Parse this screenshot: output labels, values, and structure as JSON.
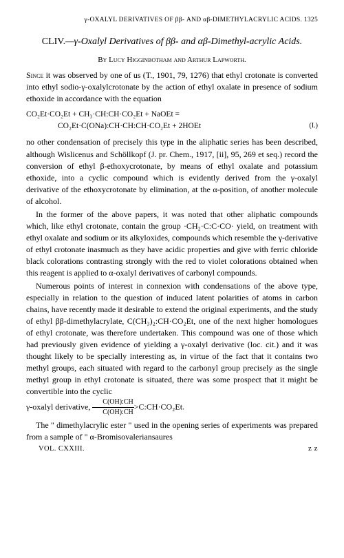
{
  "runningHead": "γ-OXALYL DERIVATIVES OF ββ- AND αβ-DIMETHYLACRYLIC ACIDS. 1325",
  "title": {
    "num": "CLIV.",
    "text": "—γ-Oxalyl Derivatives of ββ- and αβ-Dimethyl-acrylic Acids."
  },
  "byline": "By Lucy Higginbotham and Arthur Lapworth.",
  "para1a": "Since",
  "para1b": " it was observed by one of us (T., 1901, 79, 1276) that ethyl crotonate is converted into ethyl sodio-γ-oxalylcrotonate by the action of ethyl oxalate in presence of sodium ethoxide in accordance with the equation",
  "eqLine1": "CO₂Et·CO₂Et + CH₃·CH:CH·CO₂Et + NaOEt =",
  "eqLine2": "CO₂Et·C(ONa):CH·CH:CH·CO₂Et + 2HOEt",
  "eqNum": "(I.)",
  "para2": "no other condensation of precisely this type in the aliphatic series has been described, although Wislicenus and Schöllkopf (J. pr. Chem., 1917, [ii], 95, 269 et seq.) record the conversion of ethyl β-ethoxycrotonate, by means of ethyl oxalate and potassium ethoxide, into a cyclic compound which is evidently derived from the γ-oxalyl derivative of the ethoxycrotonate by elimination, at the α-position, of another molecule of alcohol.",
  "para3": "In the former of the above papers, it was noted that other aliphatic compounds which, like ethyl crotonate, contain the group ·CH₂·C:C·CO· yield, on treatment with ethyl oxalate and sodium or its alkyloxides, compounds which resemble the γ-derivative of ethyl crotonate inasmuch as they have acidic properties and give with ferric chloride black colorations contrasting strongly with the red to violet colorations obtained when this reagent is applied to α-oxalyl derivatives of carbonyl compounds.",
  "para4a": "Numerous points of interest in connexion with condensations of the above type, especially in relation to the question of induced latent polarities of atoms in carbon chains, have recently made it desirable to extend the original experiments, and the study of ethyl ββ-dimethylacrylate, C(CH₃)₂:CH·CO₂Et, one of the next higher homologues of ethyl crotonate, was therefore undertaken. This compound was one of those which had previously given evidence of yielding a γ-oxalyl derivative (loc. cit.) and it was thought likely to be specially interesting as, in virtue of the fact that it contains two methyl groups, each situated with regard to the carbonyl group precisely as the single methyl group in ethyl crotonate is situated, there was some prospect that it might be convertible into the cyclic",
  "para4b": "γ-oxalyl derivative, ",
  "fracTop": "C(OH):CH",
  "fracBot": "C(OH):CH",
  "para4c": ">C:CH·CO₂Et.",
  "para5": "The \" dimethylacrylic ester \" used in the opening series of experiments was prepared from a sample of \" α-Bromisovaleriansaures",
  "footerLeft": "VOL. CXXIII.",
  "footerRight": "z z"
}
